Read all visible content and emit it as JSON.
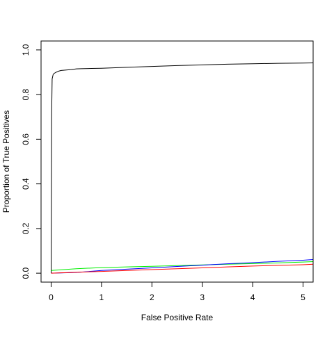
{
  "chart_data": {
    "type": "line",
    "title": "",
    "xlabel": "False Positive Rate",
    "ylabel": "Proportion of True Positives",
    "xlim": [
      -0.2,
      5.2
    ],
    "ylim": [
      -0.04,
      1.04
    ],
    "x_ticks": [
      0,
      1,
      2,
      3,
      4,
      5
    ],
    "y_ticks": [
      0.0,
      0.2,
      0.4,
      0.6,
      0.8,
      1.0
    ],
    "x_tick_labels": [
      "0",
      "1",
      "2",
      "3",
      "4",
      "5"
    ],
    "y_tick_labels": [
      "0.0",
      "0.2",
      "0.4",
      "0.6",
      "0.8",
      "1.0"
    ],
    "grid": false,
    "legend": "none",
    "series": [
      {
        "color": "#000000",
        "x": [
          0,
          0.01,
          0.02,
          0.04,
          0.06,
          0.1,
          0.15,
          0.2,
          0.3,
          0.4,
          0.5,
          0.6,
          0.8,
          1.0,
          1.5,
          2.0,
          2.5,
          3.0,
          3.5,
          4.0,
          4.5,
          5.0,
          5.2
        ],
        "y": [
          0.0,
          0.7,
          0.87,
          0.89,
          0.895,
          0.9,
          0.905,
          0.908,
          0.91,
          0.912,
          0.915,
          0.916,
          0.917,
          0.918,
          0.922,
          0.926,
          0.93,
          0.933,
          0.936,
          0.938,
          0.94,
          0.941,
          0.942
        ]
      },
      {
        "color": "#00ee00",
        "x": [
          0,
          0.5,
          1.0,
          1.5,
          2.0,
          2.5,
          3.0,
          3.5,
          4.0,
          4.5,
          5.0,
          5.2
        ],
        "y": [
          0.012,
          0.02,
          0.025,
          0.028,
          0.031,
          0.034,
          0.037,
          0.04,
          0.043,
          0.046,
          0.05,
          0.052
        ]
      },
      {
        "color": "#0000ff",
        "x": [
          0,
          0.5,
          1.0,
          1.5,
          2.0,
          2.5,
          3.0,
          3.5,
          4.0,
          4.5,
          5.0,
          5.2
        ],
        "y": [
          0.0,
          0.003,
          0.012,
          0.018,
          0.024,
          0.03,
          0.036,
          0.042,
          0.047,
          0.053,
          0.058,
          0.061
        ]
      },
      {
        "color": "#ff0000",
        "x": [
          0,
          0.5,
          1.0,
          1.5,
          2.0,
          2.5,
          3.0,
          3.5,
          4.0,
          4.5,
          5.0,
          5.2
        ],
        "y": [
          0.0,
          0.004,
          0.008,
          0.012,
          0.016,
          0.02,
          0.024,
          0.028,
          0.032,
          0.035,
          0.038,
          0.04
        ]
      }
    ]
  }
}
